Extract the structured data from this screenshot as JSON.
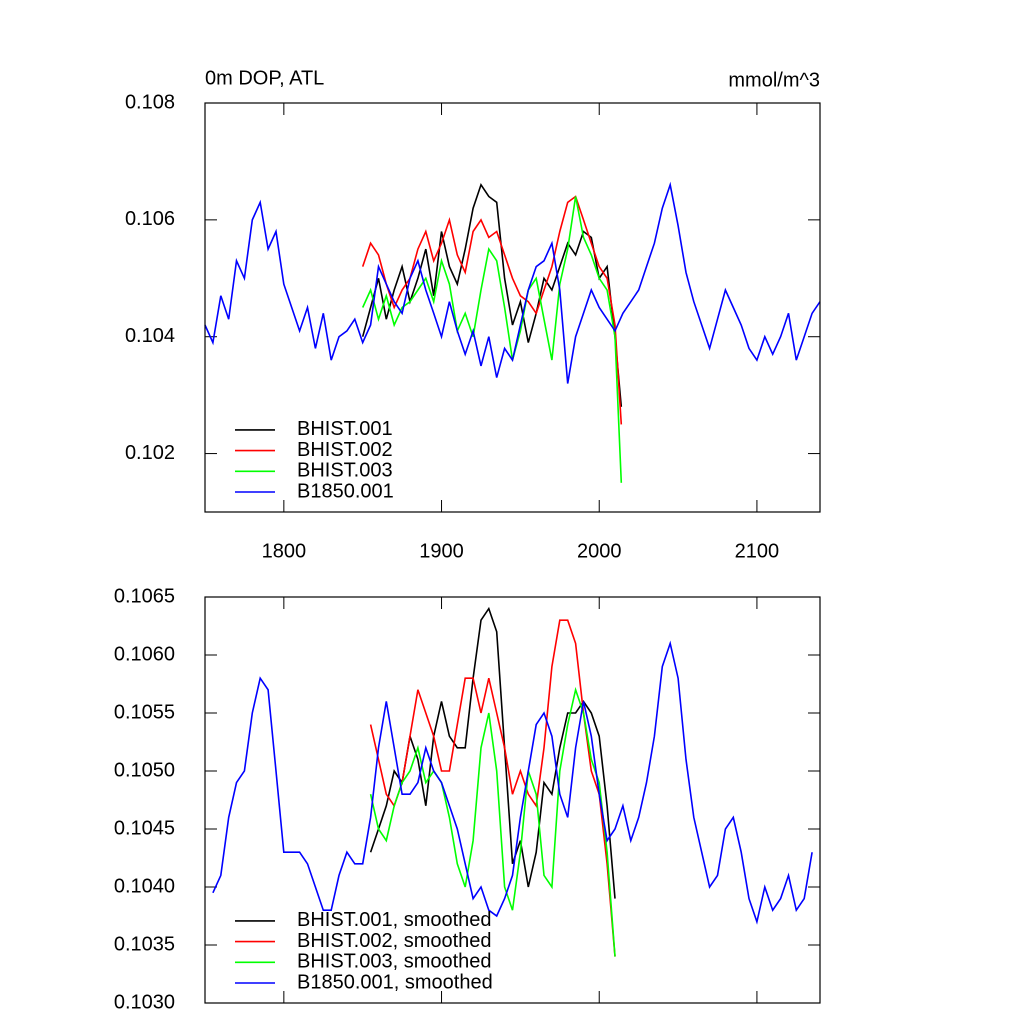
{
  "chart_data": [
    {
      "type": "line",
      "title": "0m DOP, ATL",
      "right_title": "mmol/m^3",
      "xlim": [
        1750,
        2140
      ],
      "xticks": [
        1800,
        1900,
        2000,
        2100
      ],
      "x_tick_labels": true,
      "ylim": [
        0.101,
        0.108
      ],
      "yticks": [
        0.102,
        0.104,
        0.106,
        0.108
      ],
      "legend": "lower left",
      "series": [
        {
          "name": "BHIST.001",
          "color": "#000000",
          "x": [
            1850,
            1855,
            1860,
            1865,
            1870,
            1875,
            1880,
            1885,
            1890,
            1895,
            1900,
            1905,
            1910,
            1915,
            1920,
            1925,
            1930,
            1935,
            1940,
            1945,
            1950,
            1955,
            1960,
            1965,
            1970,
            1975,
            1980,
            1985,
            1990,
            1995,
            2000,
            2005,
            2010,
            2014
          ],
          "values": [
            0.104,
            0.1045,
            0.105,
            0.1043,
            0.1048,
            0.1052,
            0.1046,
            0.105,
            0.1055,
            0.1047,
            0.1058,
            0.1052,
            0.1049,
            0.1055,
            0.1062,
            0.1066,
            0.1064,
            0.1063,
            0.105,
            0.1042,
            0.1046,
            0.1039,
            0.1044,
            0.105,
            0.1048,
            0.1052,
            0.1056,
            0.1054,
            0.1058,
            0.1057,
            0.105,
            0.1052,
            0.104,
            0.1028
          ]
        },
        {
          "name": "BHIST.002",
          "color": "#ff0000",
          "x": [
            1850,
            1855,
            1860,
            1865,
            1870,
            1875,
            1880,
            1885,
            1890,
            1895,
            1900,
            1905,
            1910,
            1915,
            1920,
            1925,
            1930,
            1935,
            1940,
            1945,
            1950,
            1955,
            1960,
            1965,
            1970,
            1975,
            1980,
            1985,
            1990,
            1995,
            2000,
            2005,
            2010,
            2014
          ],
          "values": [
            0.1052,
            0.1056,
            0.1054,
            0.1049,
            0.1045,
            0.1048,
            0.105,
            0.1055,
            0.1058,
            0.1053,
            0.1056,
            0.106,
            0.1054,
            0.1051,
            0.1058,
            0.106,
            0.1057,
            0.1058,
            0.1054,
            0.105,
            0.1047,
            0.1046,
            0.1044,
            0.1048,
            0.1052,
            0.1058,
            0.1063,
            0.1064,
            0.106,
            0.1056,
            0.1052,
            0.105,
            0.1042,
            0.1025
          ]
        },
        {
          "name": "BHIST.003",
          "color": "#00ff00",
          "x": [
            1850,
            1855,
            1860,
            1865,
            1870,
            1875,
            1880,
            1885,
            1890,
            1895,
            1900,
            1905,
            1910,
            1915,
            1920,
            1925,
            1930,
            1935,
            1940,
            1945,
            1950,
            1955,
            1960,
            1965,
            1970,
            1975,
            1980,
            1985,
            1990,
            1995,
            2000,
            2005,
            2010,
            2014
          ],
          "values": [
            0.1045,
            0.1048,
            0.1043,
            0.1047,
            0.1042,
            0.1045,
            0.1046,
            0.1048,
            0.105,
            0.1046,
            0.1053,
            0.1049,
            0.1041,
            0.1044,
            0.104,
            0.1048,
            0.1055,
            0.1053,
            0.1045,
            0.1036,
            0.1041,
            0.1048,
            0.105,
            0.1043,
            0.1036,
            0.1049,
            0.1055,
            0.1064,
            0.1057,
            0.1054,
            0.105,
            0.1048,
            0.104,
            0.1015
          ]
        },
        {
          "name": "B1850.001",
          "color": "#0000ff",
          "x": [
            1750,
            1755,
            1760,
            1765,
            1770,
            1775,
            1780,
            1785,
            1790,
            1795,
            1800,
            1805,
            1810,
            1815,
            1820,
            1825,
            1830,
            1835,
            1840,
            1845,
            1850,
            1855,
            1860,
            1865,
            1870,
            1875,
            1880,
            1885,
            1890,
            1895,
            1900,
            1905,
            1910,
            1915,
            1920,
            1925,
            1930,
            1935,
            1940,
            1945,
            1950,
            1955,
            1960,
            1965,
            1970,
            1975,
            1980,
            1985,
            1990,
            1995,
            2000,
            2005,
            2010,
            2015,
            2020,
            2025,
            2030,
            2035,
            2040,
            2045,
            2050,
            2055,
            2060,
            2065,
            2070,
            2075,
            2080,
            2085,
            2090,
            2095,
            2100,
            2105,
            2110,
            2115,
            2120,
            2125,
            2130,
            2135,
            2140
          ],
          "values": [
            0.1042,
            0.1039,
            0.1047,
            0.1043,
            0.1053,
            0.105,
            0.106,
            0.1063,
            0.1055,
            0.1058,
            0.1049,
            0.1045,
            0.1041,
            0.1045,
            0.1038,
            0.1044,
            0.1036,
            0.104,
            0.1041,
            0.1043,
            0.1039,
            0.1042,
            0.1052,
            0.1049,
            0.1046,
            0.1044,
            0.105,
            0.1053,
            0.1048,
            0.1044,
            0.104,
            0.1046,
            0.1041,
            0.1037,
            0.1041,
            0.1035,
            0.104,
            0.1033,
            0.1038,
            0.1036,
            0.1042,
            0.1048,
            0.1052,
            0.1053,
            0.1056,
            0.1048,
            0.1032,
            0.104,
            0.1044,
            0.1048,
            0.1045,
            0.1043,
            0.1041,
            0.1044,
            0.1046,
            0.1048,
            0.1052,
            0.1056,
            0.1062,
            0.1066,
            0.1059,
            0.1051,
            0.1046,
            0.1042,
            0.1038,
            0.1043,
            0.1048,
            0.1045,
            0.1042,
            0.1038,
            0.1036,
            0.104,
            0.1037,
            0.104,
            0.1044,
            0.1036,
            0.104,
            0.1044,
            0.1046
          ]
        }
      ]
    },
    {
      "type": "line",
      "xlim": [
        1750,
        2140
      ],
      "xticks": [
        1800,
        1900,
        2000,
        2100
      ],
      "x_tick_labels": false,
      "ylim": [
        0.103,
        0.1065
      ],
      "yticks": [
        {
          "value": 0.103,
          "label": "0.1030"
        },
        0.1035,
        {
          "value": 0.104,
          "label": "0.1040"
        },
        0.1045,
        {
          "value": 0.105,
          "label": "0.1050"
        },
        0.1055,
        {
          "value": 0.106,
          "label": "0.1060"
        },
        0.1065
      ],
      "legend": "lower left",
      "series": [
        {
          "name": "BHIST.001, smoothed",
          "color": "#000000",
          "x": [
            1855,
            1860,
            1865,
            1870,
            1875,
            1880,
            1885,
            1890,
            1895,
            1900,
            1905,
            1910,
            1915,
            1920,
            1925,
            1930,
            1935,
            1940,
            1945,
            1950,
            1955,
            1960,
            1965,
            1970,
            1975,
            1980,
            1985,
            1990,
            1995,
            2000,
            2005,
            2010
          ],
          "values": [
            0.1043,
            0.1045,
            0.1047,
            0.105,
            0.1049,
            0.1053,
            0.1051,
            0.1047,
            0.1053,
            0.1056,
            0.1053,
            0.1052,
            0.1052,
            0.1058,
            0.1063,
            0.1064,
            0.1062,
            0.1052,
            0.1042,
            0.1044,
            0.104,
            0.1043,
            0.1049,
            0.1048,
            0.1052,
            0.1055,
            0.1055,
            0.1056,
            0.1055,
            0.1053,
            0.1047,
            0.1039
          ]
        },
        {
          "name": "BHIST.002, smoothed",
          "color": "#ff0000",
          "x": [
            1855,
            1860,
            1865,
            1870,
            1875,
            1880,
            1885,
            1890,
            1895,
            1900,
            1905,
            1910,
            1915,
            1920,
            1925,
            1930,
            1935,
            1940,
            1945,
            1950,
            1955,
            1960,
            1965,
            1970,
            1975,
            1980,
            1985,
            1990,
            1995,
            2000,
            2005,
            2010
          ],
          "values": [
            0.1054,
            0.1051,
            0.1048,
            0.1047,
            0.1049,
            0.1053,
            0.1057,
            0.1055,
            0.1053,
            0.105,
            0.105,
            0.1054,
            0.1058,
            0.1058,
            0.1055,
            0.1058,
            0.1055,
            0.1052,
            0.1048,
            0.105,
            0.1048,
            0.1047,
            0.1052,
            0.1059,
            0.1063,
            0.1063,
            0.1061,
            0.1055,
            0.105,
            0.1048,
            0.1042,
            0.1034
          ]
        },
        {
          "name": "BHIST.003, smoothed",
          "color": "#00ff00",
          "x": [
            1855,
            1860,
            1865,
            1870,
            1875,
            1880,
            1885,
            1890,
            1895,
            1900,
            1905,
            1910,
            1915,
            1920,
            1925,
            1930,
            1935,
            1940,
            1945,
            1950,
            1955,
            1960,
            1965,
            1970,
            1975,
            1980,
            1985,
            1990,
            1995,
            2000,
            2005,
            2010
          ],
          "values": [
            0.1048,
            0.1045,
            0.1044,
            0.1047,
            0.1049,
            0.105,
            0.1052,
            0.1049,
            0.105,
            0.1049,
            0.1046,
            0.1042,
            0.104,
            0.1044,
            0.1052,
            0.1055,
            0.105,
            0.104,
            0.1038,
            0.1043,
            0.105,
            0.1048,
            0.1041,
            0.104,
            0.105,
            0.1054,
            0.1057,
            0.1055,
            0.1051,
            0.1049,
            0.1043,
            0.1034
          ]
        },
        {
          "name": "B1850.001, smoothed",
          "color": "#0000ff",
          "x": [
            1755,
            1760,
            1765,
            1770,
            1775,
            1780,
            1785,
            1790,
            1795,
            1800,
            1805,
            1810,
            1815,
            1820,
            1825,
            1830,
            1835,
            1840,
            1845,
            1850,
            1855,
            1860,
            1865,
            1870,
            1875,
            1880,
            1885,
            1890,
            1895,
            1900,
            1905,
            1910,
            1915,
            1920,
            1925,
            1930,
            1935,
            1940,
            1945,
            1950,
            1955,
            1960,
            1965,
            1970,
            1975,
            1980,
            1985,
            1990,
            1995,
            2000,
            2005,
            2010,
            2015,
            2020,
            2025,
            2030,
            2035,
            2040,
            2045,
            2050,
            2055,
            2060,
            2065,
            2070,
            2075,
            2080,
            2085,
            2090,
            2095,
            2100,
            2105,
            2110,
            2115,
            2120,
            2125,
            2130,
            2135
          ],
          "values": [
            0.10395,
            0.1041,
            0.1046,
            0.1049,
            0.105,
            0.1055,
            0.1058,
            0.1057,
            0.105,
            0.1043,
            0.1043,
            0.1043,
            0.1042,
            0.104,
            0.1038,
            0.1038,
            0.1041,
            0.1043,
            0.1042,
            0.1042,
            0.1046,
            0.1052,
            0.1056,
            0.1052,
            0.1048,
            0.1048,
            0.1049,
            0.1052,
            0.105,
            0.1049,
            0.1047,
            0.1045,
            0.1042,
            0.1039,
            0.104,
            0.1038,
            0.10375,
            0.1039,
            0.1041,
            0.1046,
            0.105,
            0.1054,
            0.1055,
            0.1053,
            0.1048,
            0.1046,
            0.1052,
            0.1056,
            0.1053,
            0.1048,
            0.1044,
            0.1045,
            0.1047,
            0.1044,
            0.1046,
            0.1049,
            0.1053,
            0.1059,
            0.1061,
            0.1058,
            0.1051,
            0.1046,
            0.1043,
            0.104,
            0.1041,
            0.1045,
            0.1046,
            0.1043,
            0.1039,
            0.1037,
            0.104,
            0.1038,
            0.1039,
            0.1041,
            0.1038,
            0.1039,
            0.1043
          ]
        }
      ]
    }
  ]
}
